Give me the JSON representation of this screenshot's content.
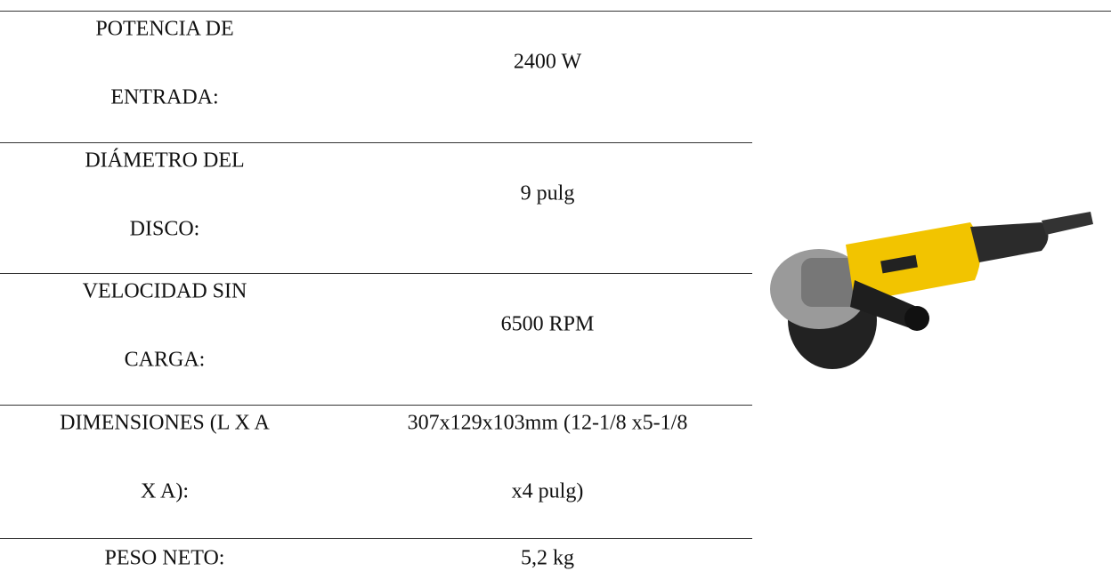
{
  "table": {
    "rows": [
      {
        "label": [
          "POTENCIA DE",
          "ENTRADA:"
        ],
        "value": [
          "2400 W"
        ]
      },
      {
        "label": [
          "DIÁMETRO DEL",
          "DISCO:"
        ],
        "value": [
          "9 pulg"
        ]
      },
      {
        "label": [
          "VELOCIDAD SIN",
          "CARGA:"
        ],
        "value": [
          "6500 RPM"
        ]
      },
      {
        "label": [
          "DIMENSIONES (L X A",
          "X A):"
        ],
        "value": [
          "307x129x103mm (12-1/8 x5-1/8",
          "x4 pulg)"
        ]
      },
      {
        "label": [
          "PESO NETO:"
        ],
        "value": [
          "5,2 kg"
        ]
      }
    ]
  }
}
